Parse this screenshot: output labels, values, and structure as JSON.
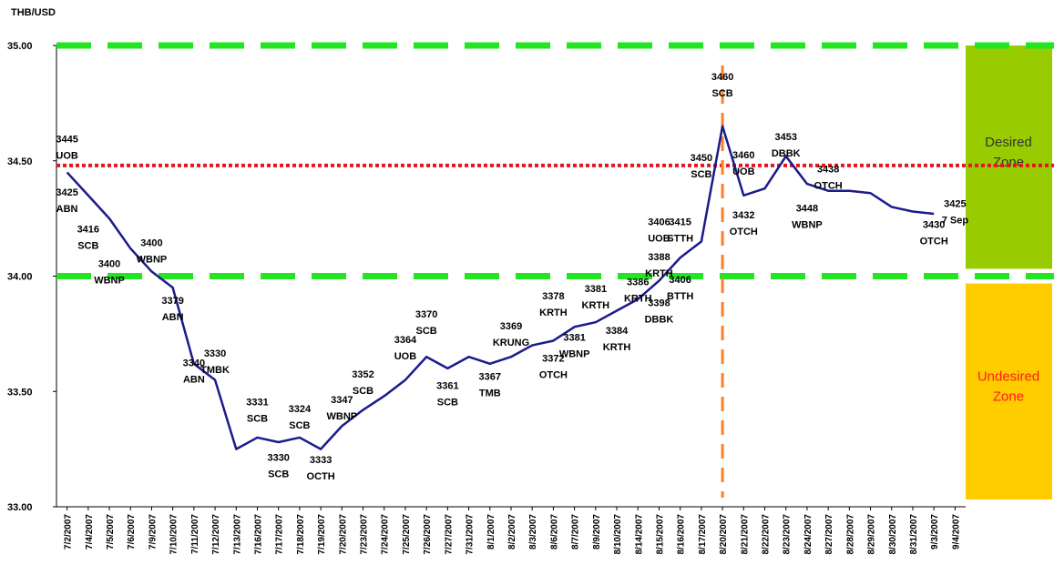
{
  "chart_data": {
    "type": "line",
    "y_axis_title": "THB/USD",
    "categories": [
      "7/2/2007",
      "7/4/2007",
      "7/5/2007",
      "7/6/2007",
      "7/9/2007",
      "7/10/2007",
      "7/11/2007",
      "7/12/2007",
      "7/13/2007",
      "7/16/2007",
      "7/17/2007",
      "7/18/2007",
      "7/19/2007",
      "7/20/2007",
      "7/23/2007",
      "7/24/2007",
      "7/25/2007",
      "7/26/2007",
      "7/27/2007",
      "7/31/2007",
      "8/1/2007",
      "8/2/2007",
      "8/3/2007",
      "8/6/2007",
      "8/7/2007",
      "8/9/2007",
      "8/10/2007",
      "8/14/2007",
      "8/15/2007",
      "8/16/2007",
      "8/17/2007",
      "8/20/2007",
      "8/21/2007",
      "8/22/2007",
      "8/23/2007",
      "8/24/2007",
      "8/27/2007",
      "8/28/2007",
      "8/29/2007",
      "8/30/2007",
      "8/31/2007",
      "9/3/2007",
      "9/4/2007"
    ],
    "series": [
      {
        "name": "THB/USD",
        "color": "#1b1b8a",
        "values": [
          34.45,
          34.35,
          34.25,
          34.12,
          34.02,
          33.95,
          33.62,
          33.55,
          33.25,
          33.3,
          33.28,
          33.3,
          33.25,
          33.35,
          33.42,
          33.48,
          33.55,
          33.65,
          33.6,
          33.65,
          33.62,
          33.65,
          33.7,
          33.72,
          33.78,
          33.8,
          33.85,
          33.9,
          33.98,
          34.08,
          34.15,
          34.65,
          34.35,
          34.38,
          34.52,
          34.4,
          34.37,
          34.37,
          34.36,
          34.3,
          34.28,
          34.27,
          null
        ]
      }
    ],
    "ylim": [
      33,
      35
    ],
    "yticks": [
      {
        "value": 33,
        "label": "33.00"
      },
      {
        "value": 33.5,
        "label": "33.50"
      },
      {
        "value": 34,
        "label": "34.00"
      },
      {
        "value": 34.5,
        "label": "34.50"
      },
      {
        "value": 35,
        "label": "35.00"
      }
    ],
    "reference_lines": [
      {
        "y": 35,
        "color": "#22e622",
        "style": "dashed"
      },
      {
        "y": 34,
        "color": "#22e622",
        "style": "dashed"
      },
      {
        "y": 34.48,
        "color": "#e8141e",
        "style": "dotted"
      }
    ],
    "vertical_lines": [
      {
        "x": "8/20/2007",
        "color": "#ff7f27",
        "style": "dashed"
      }
    ],
    "zones": [
      {
        "label_lines": [
          "Desired",
          "Zone"
        ],
        "range": [
          34,
          35
        ],
        "color": "#99cc00",
        "text_color": "#333333"
      },
      {
        "label_lines": [
          "Undesired",
          "Zone"
        ],
        "range": [
          33,
          34
        ],
        "color": "#ffcc00",
        "text_color": "#ff1a1a"
      }
    ],
    "annotations": [
      {
        "rate": "3445",
        "bank": "UOB",
        "x": "7/2/2007",
        "y": 34.58
      },
      {
        "rate": "3425",
        "bank": "ABN",
        "x": "7/2/2007",
        "y": 34.35
      },
      {
        "rate": "3416",
        "bank": "SCB",
        "x": "7/4/2007",
        "y": 34.19
      },
      {
        "rate": "3400",
        "bank": "WBNP",
        "x": "7/9/2007",
        "y": 34.13
      },
      {
        "rate": "3400",
        "bank": "WBNP",
        "x": "7/5/2007",
        "y": 34.04
      },
      {
        "rate": "3379",
        "bank": "ABN",
        "x": "7/10/2007",
        "y": 33.88
      },
      {
        "rate": "3340",
        "bank": "ABN",
        "x": "7/11/2007",
        "y": 33.61
      },
      {
        "rate": "3330",
        "bank": "TMBK",
        "x": "7/12/2007",
        "y": 33.65
      },
      {
        "rate": "3331",
        "bank": "SCB",
        "x": "7/16/2007",
        "y": 33.44
      },
      {
        "rate": "3330",
        "bank": "SCB",
        "x": "7/17/2007",
        "y": 33.2
      },
      {
        "rate": "3324",
        "bank": "SCB",
        "x": "7/18/2007",
        "y": 33.41
      },
      {
        "rate": "3333",
        "bank": "OCTH",
        "x": "7/19/2007",
        "y": 33.19
      },
      {
        "rate": "3347",
        "bank": "WBNP",
        "x": "7/20/2007",
        "y": 33.45
      },
      {
        "rate": "3352",
        "bank": "SCB",
        "x": "7/23/2007",
        "y": 33.56
      },
      {
        "rate": "3364",
        "bank": "UOB",
        "x": "7/25/2007",
        "y": 33.71
      },
      {
        "rate": "3370",
        "bank": "SCB",
        "x": "7/26/2007",
        "y": 33.82
      },
      {
        "rate": "3361",
        "bank": "SCB",
        "x": "7/27/2007",
        "y": 33.51
      },
      {
        "rate": "3369",
        "bank": "KRUNG",
        "x": "8/2/2007",
        "y": 33.77
      },
      {
        "rate": "3367",
        "bank": "TMB",
        "x": "8/1/2007",
        "y": 33.55
      },
      {
        "rate": "3378",
        "bank": "KRTH",
        "x": "8/6/2007",
        "y": 33.9
      },
      {
        "rate": "3372",
        "bank": "OTCH",
        "x": "8/6/2007",
        "y": 33.63
      },
      {
        "rate": "3381",
        "bank": "WBNP",
        "x": "8/7/2007",
        "y": 33.72
      },
      {
        "rate": "3381",
        "bank": "KRTH",
        "x": "8/9/2007",
        "y": 33.93
      },
      {
        "rate": "3386",
        "bank": "KRTH",
        "x": "8/14/2007",
        "y": 33.96
      },
      {
        "rate": "3384",
        "bank": "KRTH",
        "x": "8/10/2007",
        "y": 33.75
      },
      {
        "rate": "3388",
        "bank": "KRTH",
        "x": "8/15/2007",
        "y": 34.07
      },
      {
        "rate": "3398",
        "bank": "DBBK",
        "x": "8/15/2007",
        "y": 33.87
      },
      {
        "rate": "3406",
        "bank": "UOB",
        "x": "8/15/2007",
        "y": 34.22
      },
      {
        "rate": "3415",
        "bank": "STTH",
        "x": "8/16/2007",
        "y": 34.22
      },
      {
        "rate": "3406",
        "bank": "BTTH",
        "x": "8/16/2007",
        "y": 33.97
      },
      {
        "rate": "3450",
        "bank": "SCB",
        "x": "8/17/2007",
        "y": 34.5
      },
      {
        "rate": "3460",
        "bank": "SCB",
        "x": "8/20/2007",
        "y": 34.85
      },
      {
        "rate": "3460",
        "bank": "UOB",
        "x": "8/21/2007",
        "y": 34.51
      },
      {
        "rate": "3432",
        "bank": "OTCH",
        "x": "8/21/2007",
        "y": 34.25
      },
      {
        "rate": "3453",
        "bank": "DBBK",
        "x": "8/23/2007",
        "y": 34.59
      },
      {
        "rate": "3438",
        "bank": "OTCH",
        "x": "8/27/2007",
        "y": 34.45
      },
      {
        "rate": "3448",
        "bank": "WBNP",
        "x": "8/24/2007",
        "y": 34.28
      },
      {
        "rate": "3430",
        "bank": "OTCH",
        "x": "9/3/2007",
        "y": 34.21
      },
      {
        "rate": "3425",
        "bank": "7 Sep",
        "x": "9/4/2007",
        "y": 34.3
      }
    ]
  }
}
